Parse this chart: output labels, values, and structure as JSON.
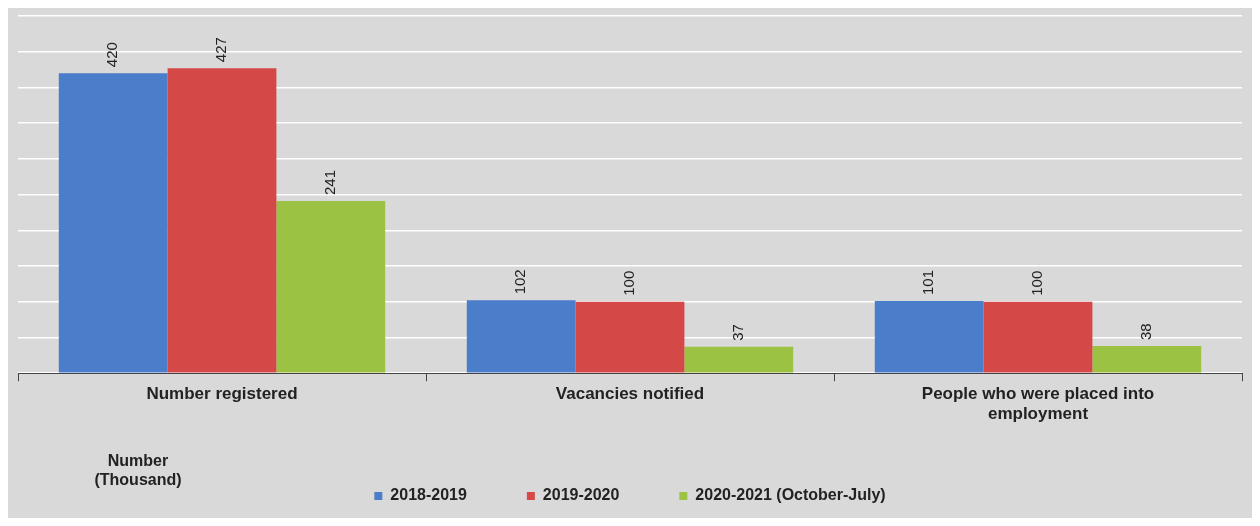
{
  "chart_data": {
    "type": "bar",
    "categories": [
      "Number registered",
      "Vacancies notified",
      "People who were placed into employment"
    ],
    "series": [
      {
        "name": "2018-2019",
        "color": "#4a7dca",
        "values": [
          420,
          102,
          101
        ]
      },
      {
        "name": "2019-2020",
        "color": "#d54848",
        "values": [
          427,
          100,
          100
        ]
      },
      {
        "name": "2020-2021 (October-July)",
        "color": "#9cc243",
        "values": [
          241,
          37,
          38
        ]
      }
    ],
    "legend_title": "Number\n(Thousand)",
    "legend": "bottom",
    "data_labels": true,
    "grid": "y",
    "tick_labels": "x",
    "ylim": [
      0,
      500
    ],
    "yticks": [
      {
        "value": 0,
        "label": null
      },
      {
        "value": 50,
        "label": null
      },
      {
        "value": 100,
        "label": null
      },
      {
        "value": 150,
        "label": null
      },
      {
        "value": 200,
        "label": null
      },
      {
        "value": 250,
        "label": null
      },
      {
        "value": 300,
        "label": null
      },
      {
        "value": 350,
        "label": null
      },
      {
        "value": 400,
        "label": null
      },
      {
        "value": 450,
        "label": null
      },
      {
        "value": 500,
        "label": null
      }
    ]
  }
}
